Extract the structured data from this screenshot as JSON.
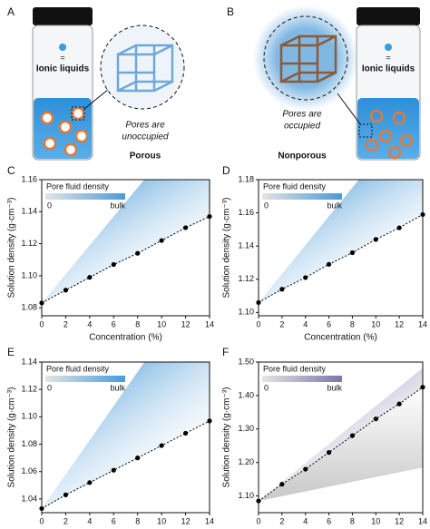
{
  "panel_a": {
    "letter": "A",
    "legend_symbol": "=",
    "legend_label": "Ionic liquids",
    "caption_lines": [
      "Pores are",
      "unoccupied"
    ],
    "title": "Porous"
  },
  "panel_b": {
    "letter": "B",
    "legend_symbol": "=",
    "legend_label": "Ionic liquids",
    "caption_lines": [
      "Pores are",
      "occupied"
    ],
    "title": "Nonporous"
  },
  "chart_data": [
    {
      "type": "line",
      "panel_label": "C",
      "x_label": "Concentration (%)",
      "y_label": "Solution density (g·cm⁻³)",
      "legend_title": "Pore fluid density",
      "legend_low": "0",
      "legend_high": "bulk",
      "shade_color": "#4a9ad8",
      "x": [
        0,
        2,
        4,
        6,
        8,
        10,
        12,
        14
      ],
      "values": [
        1.083,
        1.091,
        1.099,
        1.107,
        1.114,
        1.122,
        1.13,
        1.137
      ],
      "color": "#000000",
      "xlim": [
        0,
        14
      ],
      "xticks": [
        0,
        2,
        4,
        6,
        8,
        10,
        12,
        14
      ],
      "ylim": [
        1.075,
        1.16
      ],
      "yticks": [
        1.08,
        {
          "value": 1.1,
          "label": "1.10"
        },
        1.12,
        1.14,
        1.16
      ]
    },
    {
      "type": "line",
      "panel_label": "D",
      "x_label": "Concentration (%)",
      "y_label": "Solution density (g·cm⁻³)",
      "legend_title": "Pore fluid density",
      "legend_low": "0",
      "legend_high": "bulk",
      "shade_color": "#4a9ad8",
      "x": [
        0,
        2,
        4,
        6,
        8,
        10,
        12,
        14
      ],
      "values": [
        1.106,
        1.114,
        1.121,
        1.129,
        1.136,
        1.144,
        1.151,
        1.159
      ],
      "color": "#000000",
      "xlim": [
        0,
        14
      ],
      "xticks": [
        0,
        2,
        4,
        6,
        8,
        10,
        12,
        14
      ],
      "ylim": [
        1.098,
        1.18
      ],
      "yticks": [
        {
          "value": 1.1,
          "label": "1.10"
        },
        1.12,
        1.14,
        1.16,
        1.18
      ]
    },
    {
      "type": "line",
      "panel_label": "E",
      "x_label": "Concentration (%)",
      "y_label": "Solution density (g·cm⁻³)",
      "legend_title": "Pore fluid density",
      "legend_low": "0",
      "legend_high": "bulk",
      "shade_color": "#4a9ad8",
      "x": [
        0,
        2,
        4,
        6,
        8,
        10,
        12,
        14
      ],
      "values": [
        1.033,
        1.043,
        1.052,
        1.061,
        1.07,
        1.079,
        1.088,
        1.097
      ],
      "color": "#000000",
      "xlim": [
        0,
        14
      ],
      "xticks": [
        0,
        2,
        4,
        6,
        8,
        10,
        12,
        14
      ],
      "ylim": [
        1.03,
        1.14
      ],
      "yticks": [
        1.04,
        1.06,
        1.08,
        {
          "value": 1.1,
          "label": "1.10"
        },
        1.12,
        1.14
      ]
    },
    {
      "type": "line",
      "panel_label": "F",
      "x_label": "Concentration (%)",
      "y_label": "Solution density (g·cm⁻³)",
      "legend_title": "Pore fluid density",
      "legend_low": "0",
      "legend_high": "bulk",
      "shade_color": "#7b76a8",
      "x": [
        0,
        2,
        4,
        6,
        8,
        10,
        12,
        14
      ],
      "values": [
        1.085,
        1.135,
        1.18,
        1.23,
        1.28,
        1.33,
        1.375,
        1.425
      ],
      "color": "#000000",
      "xlim": [
        0,
        14
      ],
      "xticks": [
        0,
        2,
        4,
        6,
        8,
        10,
        12,
        14
      ],
      "ylim": [
        1.05,
        1.5
      ],
      "yticks": [
        {
          "value": 1.1,
          "label": "1.10"
        },
        {
          "value": 1.2,
          "label": "1.20"
        },
        {
          "value": 1.3,
          "label": "1.30"
        },
        {
          "value": 1.4,
          "label": "1.40"
        },
        {
          "value": 1.5,
          "label": "1.50"
        }
      ]
    }
  ]
}
